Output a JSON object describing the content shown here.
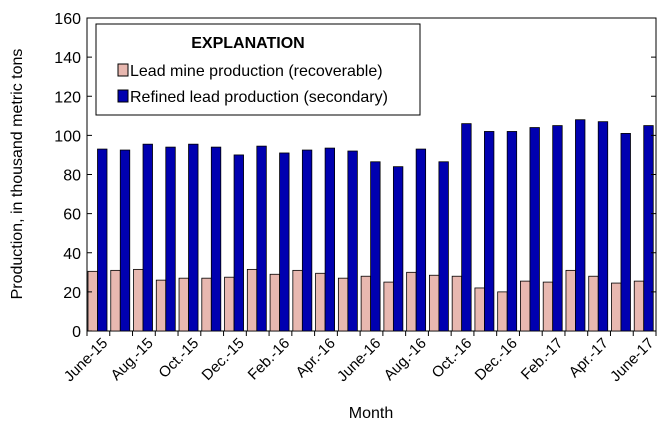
{
  "chart_data": {
    "type": "bar",
    "title": "",
    "xlabel": "Month",
    "ylabel": "Production, in thousand metric tons",
    "ylim": [
      0,
      160
    ],
    "yticks": [
      0,
      20,
      40,
      60,
      80,
      100,
      120,
      140,
      160
    ],
    "grid": false,
    "legend_placement": "top-left",
    "legend_title": "EXPLANATION",
    "categories": [
      "June-15",
      "July-15",
      "Aug.-15",
      "Sept.-15",
      "Oct.-15",
      "Nov.-15",
      "Dec.-15",
      "Jan.-16",
      "Feb.-16",
      "Mar.-16",
      "Apr.-16",
      "May-16",
      "June-16",
      "July-16",
      "Aug.-16",
      "Sept.-16",
      "Oct.-16",
      "Nov.-16",
      "Dec.-16",
      "Jan.-17",
      "Feb.-17",
      "Mar.-17",
      "Apr.-17",
      "May-17",
      "June-17"
    ],
    "tick_labels": [
      "June-15",
      "",
      "Aug.-15",
      "",
      "Oct.-15",
      "",
      "Dec.-15",
      "",
      "Feb.-16",
      "",
      "Apr.-16",
      "",
      "June-16",
      "",
      "Aug.-16",
      "",
      "Oct.-16",
      "",
      "Dec.-16",
      "",
      "Feb.-17",
      "",
      "Apr.-17",
      "",
      "June-17"
    ],
    "series": [
      {
        "name": "Lead mine production (recoverable)",
        "color": "#e8b8b0",
        "values": [
          30.5,
          31,
          31.5,
          26,
          27,
          27,
          27.5,
          31.5,
          29,
          31,
          29.5,
          27,
          28,
          25,
          30,
          28.5,
          28,
          22,
          20,
          25.5,
          25,
          31,
          28,
          24.5,
          25.5
        ]
      },
      {
        "name": "Refined lead production (secondary)",
        "color": "#0000b0",
        "values": [
          93,
          92.5,
          95.5,
          94,
          95.5,
          94,
          90,
          94.5,
          91,
          92.5,
          93.5,
          92,
          86.5,
          84,
          93,
          86.5,
          106,
          102,
          102,
          104,
          105,
          108,
          107,
          101,
          105
        ]
      }
    ]
  }
}
